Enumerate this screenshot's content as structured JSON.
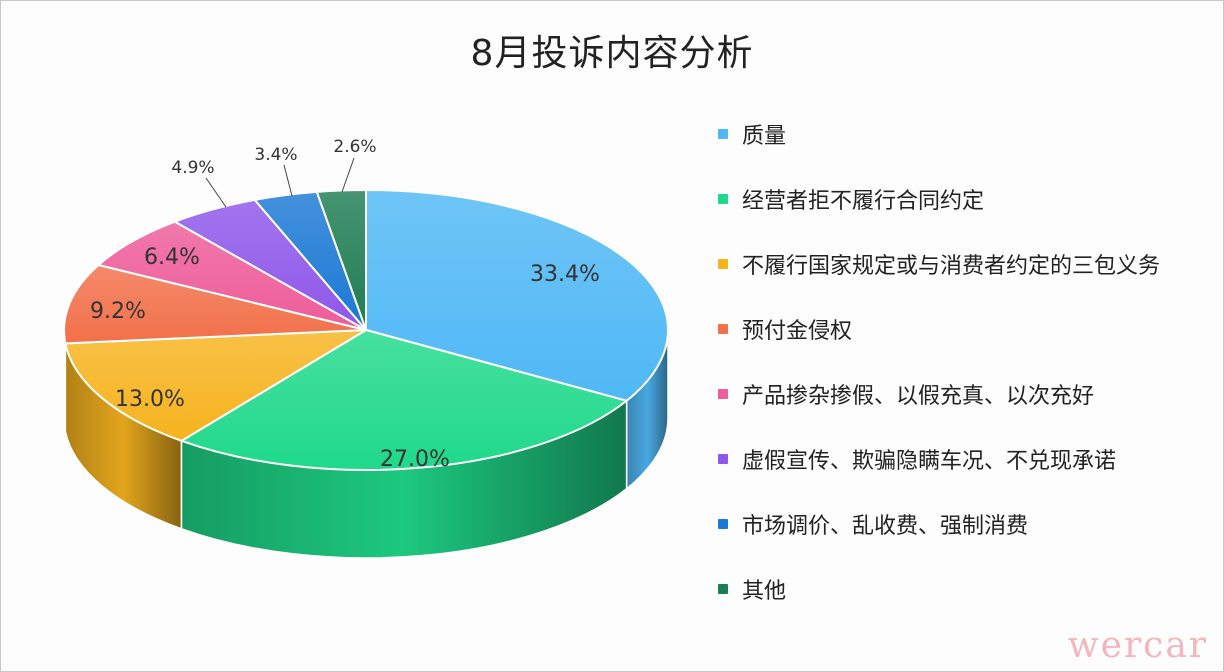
{
  "chart_data": {
    "type": "pie",
    "title": "8月投诉内容分析",
    "categories": [
      "质量",
      "经营者拒不履行合同约定",
      "不履行国家规定或与消费者约定的三包义务",
      "预付金侵权",
      "产品掺杂掺假、以假充真、以次充好",
      "虚假宣传、欺骗隐瞒车况、不兑现承诺",
      "市场调价、乱收费、强制消费",
      "其他"
    ],
    "values": [
      33.4,
      27.0,
      13.0,
      9.2,
      6.4,
      4.9,
      3.4,
      2.6
    ],
    "data_labels": [
      "33.4%",
      "27.0%",
      "13.0%",
      "9.2%",
      "6.4%",
      "4.9%",
      "3.4%",
      "2.6%"
    ],
    "colors": [
      "#4fb8f5",
      "#1fd98a",
      "#f6b31e",
      "#f2704a",
      "#ee5c9a",
      "#8e57ea",
      "#1b79d4",
      "#1f7d52"
    ],
    "legend_position": "right"
  },
  "watermark": "wercar"
}
